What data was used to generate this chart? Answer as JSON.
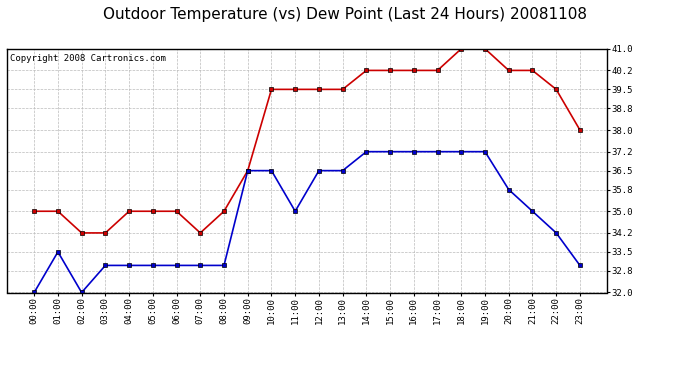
{
  "title": "Outdoor Temperature (vs) Dew Point (Last 24 Hours) 20081108",
  "copyright": "Copyright 2008 Cartronics.com",
  "hours": [
    "00:00",
    "01:00",
    "02:00",
    "03:00",
    "04:00",
    "05:00",
    "06:00",
    "07:00",
    "08:00",
    "09:00",
    "10:00",
    "11:00",
    "12:00",
    "13:00",
    "14:00",
    "15:00",
    "16:00",
    "17:00",
    "18:00",
    "19:00",
    "20:00",
    "21:00",
    "22:00",
    "23:00"
  ],
  "temp": [
    35.0,
    35.0,
    34.2,
    34.2,
    35.0,
    35.0,
    35.0,
    34.2,
    35.0,
    36.5,
    39.5,
    39.5,
    39.5,
    39.5,
    40.2,
    40.2,
    40.2,
    40.2,
    41.0,
    41.0,
    40.2,
    40.2,
    39.5,
    38.0
  ],
  "dew": [
    32.0,
    33.5,
    32.0,
    33.0,
    33.0,
    33.0,
    33.0,
    33.0,
    33.0,
    36.5,
    36.5,
    35.0,
    36.5,
    36.5,
    37.2,
    37.2,
    37.2,
    37.2,
    37.2,
    37.2,
    35.8,
    35.0,
    34.2,
    33.0
  ],
  "temp_color": "#cc0000",
  "dew_color": "#0000cc",
  "bg_color": "#ffffff",
  "plot_bg_color": "#ffffff",
  "grid_color": "#bbbbbb",
  "ylim": [
    32.0,
    41.0
  ],
  "yticks": [
    32.0,
    32.8,
    33.5,
    34.2,
    35.0,
    35.8,
    36.5,
    37.2,
    38.0,
    38.8,
    39.5,
    40.2,
    41.0
  ],
  "title_fontsize": 11,
  "copyright_fontsize": 6.5,
  "marker": "s",
  "marker_size": 3,
  "linewidth": 1.2
}
